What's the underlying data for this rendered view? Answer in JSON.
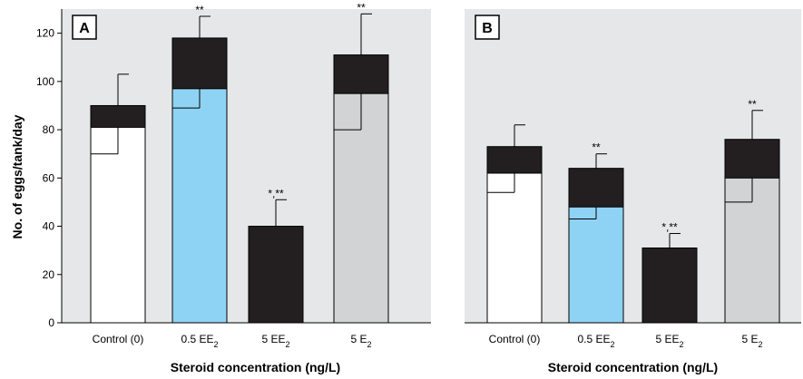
{
  "chart_data": [
    {
      "type": "bar",
      "panel_label": "A",
      "categories": [
        {
          "base": "Control (0)",
          "sub": ""
        },
        {
          "base": "0.5 EE",
          "sub": "2"
        },
        {
          "base": "5 EE",
          "sub": "2"
        },
        {
          "base": "5 E",
          "sub": "2"
        }
      ],
      "series": [
        {
          "values": [
            81,
            97,
            0,
            95
          ]
        },
        {
          "values": [
            9,
            21,
            40,
            16
          ]
        }
      ],
      "totals": [
        90,
        118,
        40,
        111
      ],
      "error_high": [
        103,
        127,
        51,
        128
      ],
      "error_low": [
        70,
        89,
        null,
        80
      ],
      "significance": [
        "",
        "**",
        "*,**",
        "**"
      ],
      "ylabel": "No. of eggs/tank/day",
      "xlabel": "Steroid concentration (ng/L)",
      "ylim": [
        0,
        130
      ],
      "yticks": [
        0,
        20,
        40,
        60,
        80,
        100,
        120
      ],
      "background": "#e6e7e8",
      "bar_colors": [
        "#ffffff",
        "#8fd3f4",
        "#231f20",
        "#d1d3d4"
      ],
      "top_color": "#231f20"
    },
    {
      "type": "bar",
      "panel_label": "B",
      "categories": [
        {
          "base": "Control (0)",
          "sub": ""
        },
        {
          "base": "0.5 EE",
          "sub": "2"
        },
        {
          "base": "5 EE",
          "sub": "2"
        },
        {
          "base": "5 E",
          "sub": "2"
        }
      ],
      "series": [
        {
          "values": [
            62,
            48,
            0,
            60
          ]
        },
        {
          "values": [
            11,
            16,
            31,
            16
          ]
        }
      ],
      "totals": [
        73,
        64,
        31,
        76
      ],
      "error_high": [
        82,
        70,
        37,
        88
      ],
      "error_low": [
        54,
        43,
        null,
        50
      ],
      "significance": [
        "",
        "**",
        "*,**",
        "**"
      ],
      "xlabel": "Steroid concentration (ng/L)",
      "ylim": [
        0,
        130
      ],
      "background": "#e6e7e8",
      "bar_colors": [
        "#ffffff",
        "#8fd3f4",
        "#231f20",
        "#d1d3d4"
      ],
      "top_color": "#231f20"
    }
  ]
}
